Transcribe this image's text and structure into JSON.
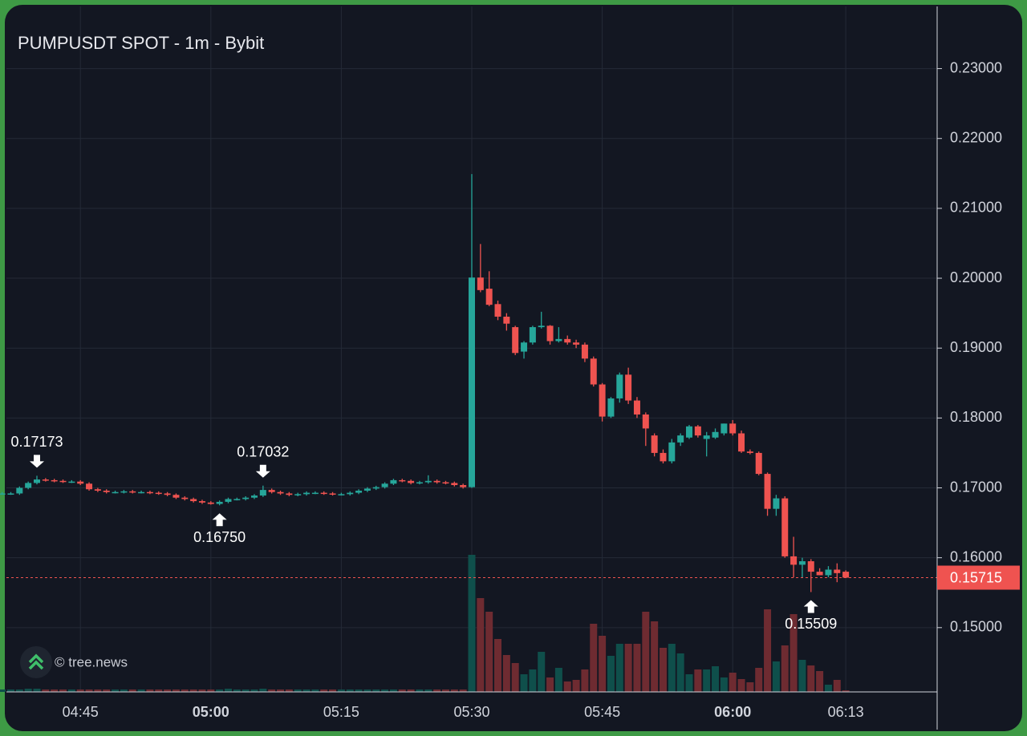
{
  "chart_data": {
    "type": "candlestick",
    "title": "PUMPUSDT SPOT - 1m - Bybit",
    "watermark": "© tree.news",
    "up_color": "#26a69a",
    "down_color": "#ef5350",
    "grid": true,
    "x": [
      "04:36",
      "04:37",
      "04:38",
      "04:39",
      "04:40",
      "04:41",
      "04:42",
      "04:43",
      "04:44",
      "04:45",
      "04:46",
      "04:47",
      "04:48",
      "04:49",
      "04:50",
      "04:51",
      "04:52",
      "04:53",
      "04:54",
      "04:55",
      "04:56",
      "04:57",
      "04:58",
      "04:59",
      "05:00",
      "05:01",
      "05:02",
      "05:03",
      "05:04",
      "05:05",
      "05:06",
      "05:07",
      "05:08",
      "05:09",
      "05:10",
      "05:11",
      "05:12",
      "05:13",
      "05:14",
      "05:15",
      "05:16",
      "05:17",
      "05:18",
      "05:19",
      "05:20",
      "05:21",
      "05:22",
      "05:23",
      "05:24",
      "05:25",
      "05:26",
      "05:27",
      "05:28",
      "05:29",
      "05:30",
      "05:31",
      "05:32",
      "05:33",
      "05:34",
      "05:35",
      "05:36",
      "05:37",
      "05:38",
      "05:39",
      "05:40",
      "05:41",
      "05:42",
      "05:43",
      "05:44",
      "05:45",
      "05:46",
      "05:47",
      "05:48",
      "05:49",
      "05:50",
      "05:51",
      "05:52",
      "05:53",
      "05:54",
      "05:55",
      "05:56",
      "05:57",
      "05:58",
      "05:59",
      "06:00",
      "06:01",
      "06:02",
      "06:03",
      "06:04",
      "06:05",
      "06:06",
      "06:07",
      "06:08",
      "06:09",
      "06:10",
      "06:11",
      "06:12",
      "06:13"
    ],
    "open": [
      0.1692,
      0.1692,
      0.1692,
      0.17,
      0.1707,
      0.1712,
      0.1711,
      0.171,
      0.1709,
      0.1709,
      0.1706,
      0.1698,
      0.1696,
      0.1694,
      0.1694,
      0.1695,
      0.1694,
      0.1694,
      0.1693,
      0.1692,
      0.169,
      0.1686,
      0.1684,
      0.1681,
      0.1679,
      0.1677,
      0.168,
      0.1684,
      0.1684,
      0.1686,
      0.1689,
      0.1697,
      0.1694,
      0.1692,
      0.169,
      0.1691,
      0.1693,
      0.1693,
      0.1692,
      0.1691,
      0.1691,
      0.1693,
      0.1696,
      0.1699,
      0.1701,
      0.1706,
      0.1711,
      0.171,
      0.1707,
      0.1708,
      0.171,
      0.1708,
      0.1707,
      0.1704,
      0.1701,
      0.2001,
      0.1985,
      0.1963,
      0.1945,
      0.193,
      0.1895,
      0.1908,
      0.193,
      0.1932,
      0.191,
      0.1913,
      0.1908,
      0.1905,
      0.1885,
      0.1848,
      0.1802,
      0.1828,
      0.1862,
      0.1825,
      0.1805,
      0.1775,
      0.175,
      0.1738,
      0.1765,
      0.1772,
      0.1788,
      0.177,
      0.1772,
      0.1778,
      0.1792,
      0.1778,
      0.1752,
      0.175,
      0.172,
      0.167,
      0.1685,
      0.1602,
      0.159,
      0.1595,
      0.158,
      0.1575,
      0.1583,
      0.158
    ],
    "high": [
      0.1694,
      0.1694,
      0.1702,
      0.1709,
      0.17173,
      0.1714,
      0.1713,
      0.1712,
      0.1711,
      0.1711,
      0.1708,
      0.17,
      0.1698,
      0.1696,
      0.1697,
      0.1697,
      0.1696,
      0.1696,
      0.1695,
      0.1694,
      0.1692,
      0.1688,
      0.1686,
      0.1683,
      0.1681,
      0.1682,
      0.1686,
      0.1686,
      0.1688,
      0.1691,
      0.17032,
      0.1699,
      0.1696,
      0.1694,
      0.1693,
      0.1695,
      0.1695,
      0.1695,
      0.1694,
      0.1693,
      0.1695,
      0.1698,
      0.1701,
      0.1703,
      0.1708,
      0.1713,
      0.1713,
      0.1712,
      0.171,
      0.1718,
      0.1712,
      0.171,
      0.1709,
      0.1706,
      0.2149,
      0.2049,
      0.201,
      0.1968,
      0.195,
      0.1932,
      0.191,
      0.1932,
      0.1952,
      0.1933,
      0.193,
      0.1918,
      0.1912,
      0.1908,
      0.1888,
      0.185,
      0.183,
      0.1865,
      0.1872,
      0.183,
      0.1808,
      0.1778,
      0.1755,
      0.177,
      0.1778,
      0.179,
      0.179,
      0.178,
      0.1785,
      0.1792,
      0.1797,
      0.1782,
      0.1755,
      0.1752,
      0.1722,
      0.169,
      0.1688,
      0.163,
      0.16,
      0.1598,
      0.1585,
      0.1588,
      0.1592,
      0.1582
    ],
    "low": [
      0.169,
      0.169,
      0.169,
      0.1698,
      0.1705,
      0.1709,
      0.1708,
      0.1707,
      0.1707,
      0.1704,
      0.1696,
      0.1694,
      0.1692,
      0.1692,
      0.1692,
      0.1692,
      0.1692,
      0.1691,
      0.169,
      0.1688,
      0.1684,
      0.1682,
      0.1679,
      0.1677,
      0.1676,
      0.1675,
      0.1678,
      0.1682,
      0.1682,
      0.1684,
      0.1687,
      0.1692,
      0.169,
      0.1688,
      0.1688,
      0.1689,
      0.1691,
      0.169,
      0.1689,
      0.1689,
      0.1689,
      0.1691,
      0.1694,
      0.1697,
      0.1699,
      0.1704,
      0.1708,
      0.1705,
      0.1705,
      0.1706,
      0.1706,
      0.1705,
      0.1702,
      0.1699,
      0.17,
      0.198,
      0.196,
      0.194,
      0.1925,
      0.189,
      0.1885,
      0.1905,
      0.1928,
      0.1905,
      0.1908,
      0.1905,
      0.19,
      0.188,
      0.1845,
      0.1795,
      0.18,
      0.1822,
      0.182,
      0.18,
      0.176,
      0.1745,
      0.1735,
      0.1735,
      0.176,
      0.177,
      0.1772,
      0.1745,
      0.177,
      0.1775,
      0.1775,
      0.175,
      0.1748,
      0.1718,
      0.166,
      0.166,
      0.16,
      0.1572,
      0.1572,
      0.15509,
      0.1575,
      0.1572,
      0.1565,
      0.15715
    ],
    "close": [
      0.1692,
      0.1692,
      0.17,
      0.1707,
      0.1712,
      0.1711,
      0.171,
      0.1709,
      0.1709,
      0.1706,
      0.1698,
      0.1696,
      0.1694,
      0.1694,
      0.1695,
      0.1694,
      0.1694,
      0.1693,
      0.1692,
      0.169,
      0.1686,
      0.1684,
      0.1681,
      0.1679,
      0.1677,
      0.168,
      0.1684,
      0.1684,
      0.1686,
      0.1689,
      0.1697,
      0.1694,
      0.1692,
      0.169,
      0.1691,
      0.1693,
      0.1693,
      0.1692,
      0.1691,
      0.1691,
      0.1693,
      0.1696,
      0.1699,
      0.1701,
      0.1706,
      0.1711,
      0.171,
      0.1707,
      0.1708,
      0.171,
      0.1708,
      0.1707,
      0.1704,
      0.1701,
      0.2001,
      0.1983,
      0.1962,
      0.1945,
      0.1935,
      0.1893,
      0.1908,
      0.193,
      0.1932,
      0.191,
      0.1913,
      0.1908,
      0.1905,
      0.1885,
      0.1848,
      0.1802,
      0.1828,
      0.1862,
      0.1825,
      0.1805,
      0.1785,
      0.175,
      0.1738,
      0.1765,
      0.1775,
      0.1788,
      0.1775,
      0.1775,
      0.178,
      0.1792,
      0.1778,
      0.1752,
      0.175,
      0.172,
      0.167,
      0.1685,
      0.1602,
      0.159,
      0.1595,
      0.158,
      0.1575,
      0.1583,
      0.1578,
      0.15715
    ],
    "volume": [
      3,
      3,
      3,
      4,
      4,
      3,
      3,
      3,
      3,
      3,
      3,
      3,
      3,
      3,
      3,
      3,
      3,
      3,
      3,
      3,
      3,
      3,
      3,
      3,
      3,
      3,
      4,
      3,
      3,
      3,
      4,
      3,
      3,
      3,
      3,
      3,
      3,
      3,
      3,
      3,
      3,
      3,
      3,
      3,
      3,
      3,
      3,
      3,
      3,
      3,
      3,
      3,
      3,
      3,
      171,
      117,
      100,
      66,
      46,
      36,
      22,
      28,
      50,
      18,
      30,
      13,
      15,
      28,
      85,
      70,
      45,
      60,
      60,
      60,
      100,
      88,
      55,
      60,
      48,
      22,
      28,
      28,
      32,
      18,
      24,
      16,
      12,
      30,
      103,
      38,
      58,
      97,
      40,
      33,
      26,
      9,
      15,
      2
    ],
    "ylim": [
      0.1408,
      0.2389
    ],
    "yticks": [
      {
        "value": 0.15,
        "label": "0.15000"
      },
      {
        "value": 0.16,
        "label": "0.16000"
      },
      {
        "value": 0.17,
        "label": "0.17000"
      },
      {
        "value": 0.18,
        "label": "0.18000"
      },
      {
        "value": 0.19,
        "label": "0.19000"
      },
      {
        "value": 0.2,
        "label": "0.20000"
      },
      {
        "value": 0.21,
        "label": "0.21000"
      },
      {
        "value": 0.22,
        "label": "0.22000"
      },
      {
        "value": 0.23,
        "label": "0.23000"
      }
    ],
    "xticks": [
      "04:45",
      "05:00",
      "05:15",
      "05:30",
      "05:45",
      "06:00",
      "06:13"
    ],
    "last_price": {
      "value": 0.15715,
      "label": "0.15715"
    },
    "annotations": [
      {
        "x": "04:40",
        "value": 0.17173,
        "label": "0.17173",
        "position": "above"
      },
      {
        "x": "05:01",
        "value": 0.1675,
        "label": "0.16750",
        "position": "below"
      },
      {
        "x": "05:06",
        "value": 0.17032,
        "label": "0.17032",
        "position": "above"
      },
      {
        "x": "06:09",
        "value": 0.15509,
        "label": "0.15509",
        "position": "below"
      }
    ]
  }
}
